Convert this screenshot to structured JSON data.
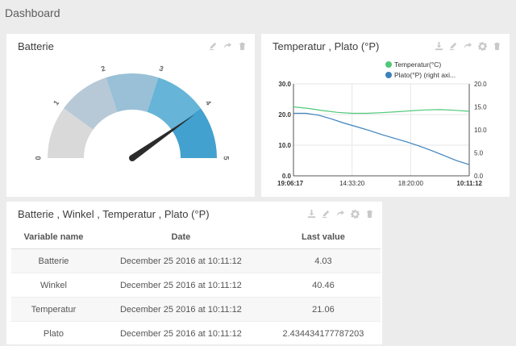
{
  "page": {
    "title": "Dashboard"
  },
  "colors": {
    "gauge_bands": [
      "#d9d9d9",
      "#b7c9d6",
      "#99c0d6",
      "#66b4d8",
      "#43a1cf"
    ],
    "needle": "#2b2b2b",
    "temperature_line": "#4fc978",
    "plato_line": "#3d82bc",
    "tool_icon": "#c9c9c9"
  },
  "battery_widget": {
    "title": "Batterie",
    "tools": [
      "edit-icon",
      "share-icon",
      "delete-icon"
    ],
    "gauge": {
      "min": 0,
      "max": 5,
      "value": 4.03,
      "tick_labels": [
        "0",
        "1",
        "2",
        "3",
        "4",
        "5"
      ]
    }
  },
  "chart_widget": {
    "title": "Temperatur , Plato (°P)",
    "tools": [
      "download-icon",
      "edit-icon",
      "share-icon",
      "settings-icon",
      "delete-icon"
    ],
    "legend": [
      "Temperatur(°C)",
      "Plato(°P) (right axi..."
    ],
    "chart_data": {
      "type": "line",
      "x_labels": [
        "19:06:17",
        "14:33:20",
        "18:20:00",
        "10:11:12"
      ],
      "y_left": {
        "min": 0,
        "max": 30,
        "ticks": [
          "0.0",
          "10.0",
          "20.0",
          "30.0"
        ]
      },
      "y_right": {
        "min": 0,
        "max": 20,
        "ticks": [
          "0.0",
          "5.0",
          "10.0",
          "15.0",
          "20.0"
        ]
      },
      "grid": true,
      "legend_position": "top-right",
      "series": [
        {
          "name": "Temperatur(°C)",
          "axis": "left",
          "values": [
            22.5,
            22.0,
            21.3,
            20.7,
            20.4,
            20.4,
            20.6,
            20.9,
            21.2,
            21.5,
            21.6,
            21.4,
            21.06
          ]
        },
        {
          "name": "Plato(°P) (right axi...",
          "axis": "right",
          "values": [
            13.6,
            13.6,
            13.2,
            12.4,
            11.5,
            10.7,
            9.9,
            9.0,
            8.2,
            7.4,
            6.5,
            5.5,
            4.4,
            3.3,
            2.43
          ]
        }
      ]
    }
  },
  "table_widget": {
    "title": "Batterie , Winkel , Temperatur , Plato (°P)",
    "tools": [
      "download-icon",
      "edit-icon",
      "share-icon",
      "settings-icon",
      "delete-icon"
    ],
    "headers": [
      "Variable name",
      "Date",
      "Last value"
    ],
    "rows": [
      [
        "Batterie",
        "December 25 2016 at 10:11:12",
        "4.03"
      ],
      [
        "Winkel",
        "December 25 2016 at 10:11:12",
        "40.46"
      ],
      [
        "Temperatur",
        "December 25 2016 at 10:11:12",
        "21.06"
      ],
      [
        "Plato",
        "December 25 2016 at 10:11:12",
        "2.434434177787203"
      ]
    ]
  }
}
